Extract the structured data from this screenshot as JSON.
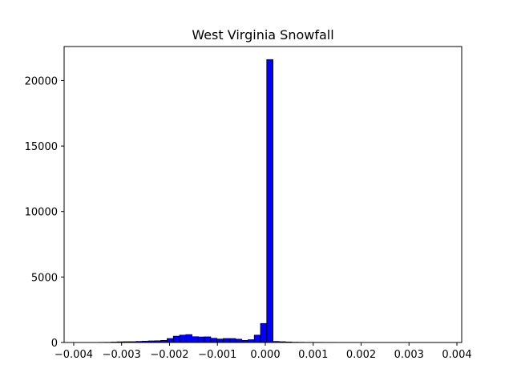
{
  "chart_data": {
    "type": "bar",
    "title": "West Virginia Snowfall",
    "xlabel": "",
    "ylabel": "",
    "bar_color": "#0000ff",
    "edge_color": "#000000",
    "xlim": [
      -0.0042,
      0.0041
    ],
    "ylim": [
      0,
      22600
    ],
    "x_ticks": [
      -0.004,
      -0.003,
      -0.002,
      -0.001,
      0.0,
      0.001,
      0.002,
      0.003,
      0.004
    ],
    "x_tick_labels": [
      "−0.004",
      "−0.003",
      "−0.002",
      "−0.001",
      "0.000",
      "0.001",
      "0.002",
      "0.003",
      "0.004"
    ],
    "y_ticks": [
      0,
      5000,
      10000,
      15000,
      20000
    ],
    "y_tick_labels": [
      "0",
      "5000",
      "10000",
      "15000",
      "20000"
    ],
    "bin_edges": [
      -0.004,
      -0.00387,
      -0.00374,
      -0.00361,
      -0.00348,
      -0.00335,
      -0.00322,
      -0.00309,
      -0.00296,
      -0.00283,
      -0.0027,
      -0.00257,
      -0.00244,
      -0.00231,
      -0.00218,
      -0.00205,
      -0.00192,
      -0.00179,
      -0.00166,
      -0.00153,
      -0.0014,
      -0.00127,
      -0.00114,
      -0.00101,
      -0.00088,
      -0.00075,
      -0.00062,
      -0.00049,
      -0.00036,
      -0.00023,
      -0.0001,
      3e-05,
      0.00016,
      0.00029,
      0.00042,
      0.00055,
      0.00068,
      0.00081,
      0.00094,
      0.00107,
      0.0012,
      0.00133,
      0.00146,
      0.00159,
      0.00172,
      0.00185,
      0.00198,
      0.00211,
      0.00224,
      0.00237,
      0.0025,
      0.00263,
      0.00276,
      0.00289,
      0.00302,
      0.00315,
      0.00328,
      0.00341,
      0.00354,
      0.00367
    ],
    "counts": [
      5,
      5,
      5,
      5,
      10,
      15,
      30,
      50,
      60,
      60,
      80,
      100,
      120,
      130,
      160,
      300,
      480,
      560,
      600,
      440,
      420,
      430,
      320,
      260,
      300,
      300,
      250,
      160,
      210,
      560,
      1450,
      21600,
      80,
      60,
      40,
      20,
      15,
      10,
      10,
      10,
      8,
      8,
      6,
      6,
      5,
      5,
      5,
      5,
      5,
      5,
      5,
      5,
      5,
      5,
      5,
      5,
      5,
      5,
      5
    ]
  }
}
